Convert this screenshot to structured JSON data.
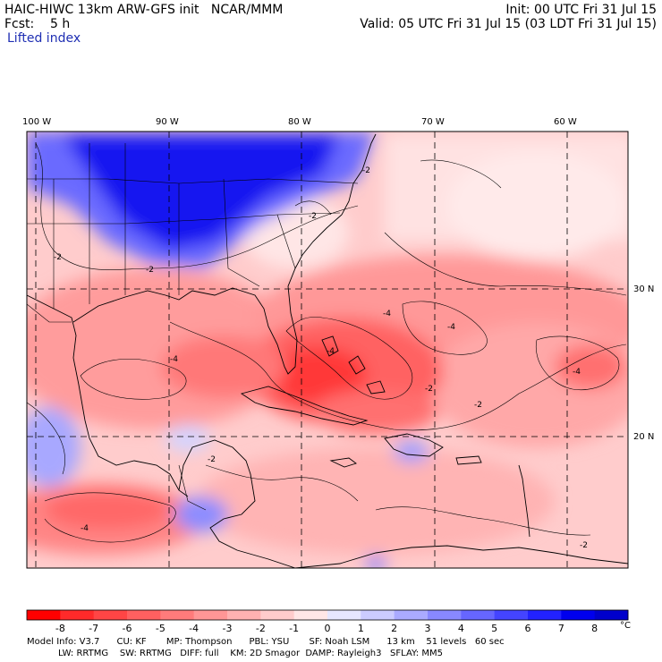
{
  "header": {
    "model_line": "HAIC-HIWC 13km ARW-GFS init   NCAR/MMM",
    "init_line": "Init: 00 UTC Fri 31 Jul 15",
    "fcst_line": "Fcst:    5 h",
    "valid_line": "Valid: 05 UTC Fri 31 Jul 15 (03 LDT Fri 31 Jul 15)",
    "field_name": "Lifted index"
  },
  "map": {
    "lon_labels": [
      "100 W",
      "90 W",
      "80 W",
      "70 W",
      "60 W"
    ],
    "lat_labels": [
      "30 N",
      "20 N"
    ],
    "region": "Gulf of Mexico / Caribbean / western Atlantic",
    "contour_labels": [
      "-2",
      "-4",
      "-2",
      "-2",
      "-4",
      "-2",
      "-2",
      "-4",
      "-4",
      "-2",
      "-4",
      "-2",
      "-2",
      "-4"
    ]
  },
  "colorbar": {
    "unit": "°C",
    "tick_labels": [
      "-8",
      "-7",
      "-6",
      "-5",
      "-4",
      "-3",
      "-2",
      "-1",
      "0",
      "1",
      "2",
      "3",
      "4",
      "5",
      "6",
      "7",
      "8"
    ],
    "colors": [
      "#ff0000",
      "#ff2a2a",
      "#ff4545",
      "#ff6060",
      "#ff7b7b",
      "#ff9696",
      "#ffb1b1",
      "#ffcccc",
      "#ffe6e6",
      "#e6e6ff",
      "#ccccff",
      "#aaaaff",
      "#8888ff",
      "#6666ff",
      "#4444ff",
      "#2222ff",
      "#0000ee",
      "#0000cc"
    ]
  },
  "footer": {
    "line1": "Model Info: V3.7      CU: KF       MP: Thompson      PBL: YSU       SF: Noah LSM      13 km    51 levels   60 sec",
    "line2": "           LW: RRTMG    SW: RRTMG   DIFF: full    KM: 2D Smagor  DAMP: Rayleigh3   SFLAY: MM5"
  }
}
